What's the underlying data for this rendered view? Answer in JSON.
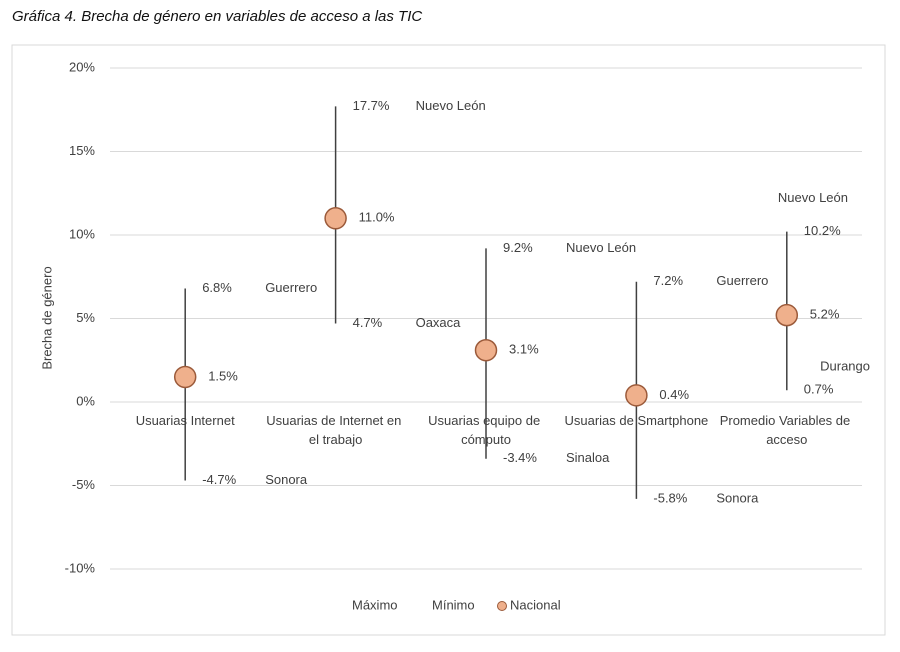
{
  "chart_data": {
    "type": "range",
    "title": "Gráfica 4. Brecha de género en variables de acceso a las TIC",
    "y_label": "Brecha de género",
    "categories": [
      "Usuarias Internet",
      "Usuarias de Internet en el trabajo",
      "Usuarias equipo de cómputo",
      "Usuarias de Smartphone",
      "Promedio Variables de acceso"
    ],
    "ylim": [
      -10,
      20
    ],
    "yticks": [
      {
        "value": -10,
        "label": "-10%"
      },
      {
        "value": -5,
        "label": "-5%"
      },
      {
        "value": 0,
        "label": "0%"
      },
      {
        "value": 5,
        "label": "5%"
      },
      {
        "value": 10,
        "label": "10%"
      },
      {
        "value": 15,
        "label": "15%"
      },
      {
        "value": 20,
        "label": "20%"
      }
    ],
    "grid": true,
    "legend": "bottom",
    "series": [
      {
        "name": "Máximo",
        "color": "#404040",
        "values": [
          6.8,
          17.7,
          9.2,
          7.2,
          10.2
        ],
        "value_labels": [
          "6.8%",
          "17.7%",
          "9.2%",
          "7.2%",
          "10.2%"
        ],
        "states": [
          "Guerrero",
          "Nuevo León",
          "Nuevo León",
          "Guerrero",
          "Nuevo León"
        ]
      },
      {
        "name": "Mínimo",
        "color": "#404040",
        "values": [
          -4.7,
          4.7,
          -3.4,
          -5.8,
          0.7
        ],
        "value_labels": [
          "-4.7%",
          "4.7%",
          "-3.4%",
          "-5.8%",
          "0.7%"
        ],
        "states": [
          "Sonora",
          "Oaxaca",
          "Sinaloa",
          "Sonora",
          "Durango"
        ]
      },
      {
        "name": "Nacional",
        "color": "#efb08c",
        "values": [
          1.5,
          11.0,
          3.1,
          0.4,
          5.2
        ],
        "value_labels": [
          "1.5%",
          "11.0%",
          "3.1%",
          "0.4%",
          "5.2%"
        ]
      }
    ]
  }
}
